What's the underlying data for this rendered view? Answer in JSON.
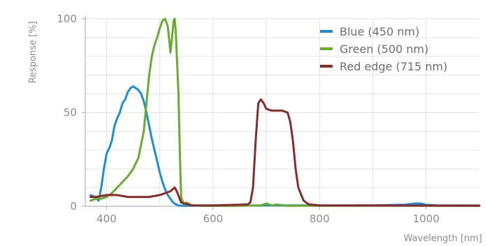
{
  "chart_data": {
    "type": "line",
    "title": "",
    "xlabel": "Wavelength [nm]",
    "ylabel": "Response [%]",
    "xlim": [
      360,
      1100
    ],
    "ylim": [
      0,
      100
    ],
    "xticks": [
      400,
      600,
      800,
      1000
    ],
    "yticks": [
      0,
      50,
      100
    ],
    "grid": true,
    "legend_position": "top-right",
    "series": [
      {
        "name": "Blue (450 nm)",
        "color": "#1a8fd6",
        "x": [
          370,
          378,
          385,
          390,
          395,
          400,
          405,
          410,
          415,
          420,
          425,
          430,
          435,
          440,
          445,
          450,
          455,
          460,
          465,
          470,
          475,
          480,
          485,
          490,
          495,
          500,
          505,
          510,
          515,
          520,
          525,
          530,
          535,
          540,
          550,
          560,
          580,
          600,
          700,
          800,
          900,
          960,
          980,
          990,
          1000,
          1020,
          1100
        ],
        "y": [
          6,
          5,
          3,
          10,
          20,
          28,
          31,
          35,
          43,
          47,
          50,
          55,
          57,
          61,
          63,
          64,
          63,
          62,
          60,
          56,
          50,
          43,
          36,
          30,
          24,
          18,
          13,
          9,
          6,
          4,
          2,
          1,
          0.5,
          0.3,
          0.3,
          0.3,
          0.3,
          0.3,
          0.5,
          0.5,
          0.5,
          0.8,
          1.5,
          1.5,
          0.8,
          0.5,
          0.5
        ]
      },
      {
        "name": "Green (500 nm)",
        "color": "#66ad2e",
        "x": [
          370,
          380,
          390,
          400,
          410,
          420,
          430,
          440,
          450,
          460,
          470,
          475,
          480,
          485,
          490,
          495,
          500,
          505,
          510,
          515,
          518,
          520,
          523,
          526,
          528,
          530,
          535,
          538,
          540,
          545,
          550,
          560,
          580,
          600,
          650,
          690,
          700,
          710,
          720,
          730,
          740,
          800,
          900,
          1100
        ],
        "y": [
          3,
          4,
          4,
          5,
          7,
          10,
          13,
          16,
          20,
          26,
          40,
          55,
          70,
          80,
          86,
          90,
          95,
          99,
          100,
          96,
          88,
          82,
          90,
          99,
          100,
          93,
          60,
          25,
          5,
          1,
          2,
          0.5,
          0.3,
          0.3,
          0.3,
          0.5,
          1.5,
          0.5,
          1,
          0.5,
          0.3,
          0.3,
          0.3,
          0.3
        ]
      },
      {
        "name": "Red edge (715 nm)",
        "color": "#8b2a2a",
        "x": [
          370,
          380,
          400,
          420,
          440,
          460,
          480,
          500,
          520,
          528,
          532,
          540,
          560,
          600,
          650,
          665,
          670,
          675,
          680,
          685,
          690,
          695,
          700,
          710,
          720,
          730,
          740,
          745,
          750,
          755,
          760,
          770,
          780,
          800,
          1100
        ],
        "y": [
          5,
          5,
          6,
          6,
          5,
          5,
          5,
          6,
          8,
          10,
          8,
          2,
          0.5,
          0.5,
          0.8,
          1,
          2,
          10,
          35,
          55,
          57,
          55,
          52,
          51,
          51,
          51,
          50,
          45,
          35,
          20,
          10,
          3,
          1,
          0.5,
          0.3
        ]
      }
    ]
  }
}
